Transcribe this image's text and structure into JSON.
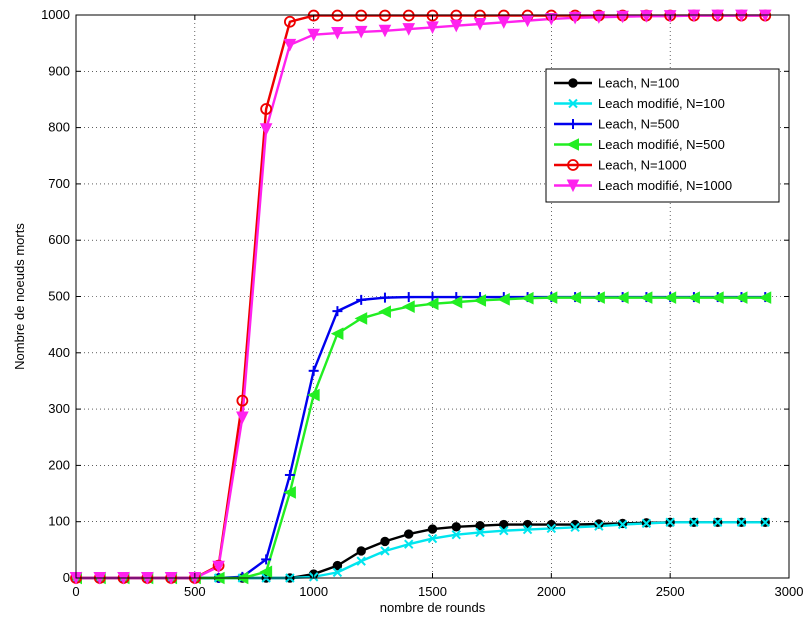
{
  "chart_data": {
    "type": "line",
    "title": "",
    "xlabel": "nombre de rounds",
    "ylabel": "Nombre de noeuds morts",
    "xlim": [
      0,
      3000
    ],
    "ylim": [
      0,
      1000
    ],
    "xticks": [
      "0",
      "500",
      "1000",
      "1500",
      "2000",
      "2500",
      "3000"
    ],
    "yticks": [
      "0",
      "100",
      "200",
      "300",
      "400",
      "500",
      "600",
      "700",
      "800",
      "900",
      "1000"
    ],
    "grid": true,
    "grid_style": "dotted",
    "legend_position": "top-right",
    "x": [
      0,
      100,
      200,
      300,
      400,
      500,
      600,
      700,
      800,
      900,
      1000,
      1100,
      1200,
      1300,
      1400,
      1500,
      1600,
      1700,
      1800,
      1900,
      2000,
      2100,
      2200,
      2300,
      2400,
      2500,
      2600,
      2700,
      2800,
      2900
    ],
    "series": [
      {
        "name": "Leach, N=100",
        "color": "#000000",
        "marker": "dot",
        "values": [
          0,
          0,
          0,
          0,
          0,
          0,
          0,
          0,
          0,
          0,
          7,
          22,
          48,
          65,
          78,
          87,
          91,
          93,
          95,
          95,
          95,
          95,
          96,
          97,
          98,
          99,
          99,
          99,
          99,
          99
        ]
      },
      {
        "name": "Leach modifié, N=100",
        "color": "#00e5ee",
        "marker": "x",
        "values": [
          0,
          0,
          0,
          0,
          0,
          0,
          0,
          0,
          0,
          0,
          2,
          10,
          30,
          48,
          60,
          70,
          77,
          81,
          84,
          86,
          88,
          90,
          92,
          95,
          97,
          99,
          99,
          99,
          99,
          99
        ]
      },
      {
        "name": "Leach, N=500",
        "color": "#0000ee",
        "marker": "plus",
        "values": [
          0,
          0,
          0,
          0,
          0,
          0,
          0,
          2,
          33,
          183,
          368,
          474,
          494,
          498,
          499,
          499,
          499,
          499,
          499,
          499,
          499,
          499,
          499,
          499,
          499,
          499,
          499,
          499,
          499,
          499
        ]
      },
      {
        "name": "Leach modifié, N=500",
        "color": "#22ee22",
        "marker": "triangle-left",
        "values": [
          0,
          0,
          0,
          0,
          0,
          0,
          0,
          0,
          11,
          152,
          325,
          434,
          461,
          473,
          482,
          487,
          490,
          493,
          495,
          497,
          498,
          498,
          498,
          498,
          498,
          498,
          498,
          498,
          498,
          498
        ]
      },
      {
        "name": "Leach, N=1000",
        "color": "#ee0000",
        "marker": "circle",
        "values": [
          0,
          0,
          0,
          0,
          0,
          0,
          22,
          315,
          833,
          988,
          999,
          999,
          999,
          999,
          999,
          999,
          999,
          999,
          999,
          999,
          999,
          999,
          999,
          999,
          999,
          999,
          999,
          999,
          999,
          999
        ]
      },
      {
        "name": "Leach modifié, N=1000",
        "color": "#ff22ee",
        "marker": "triangle-down",
        "values": [
          0,
          0,
          0,
          0,
          0,
          0,
          20,
          285,
          797,
          947,
          965,
          968,
          970,
          972,
          975,
          978,
          981,
          984,
          987,
          990,
          993,
          995,
          996,
          997,
          998,
          998,
          999,
          999,
          999,
          999
        ]
      }
    ]
  }
}
